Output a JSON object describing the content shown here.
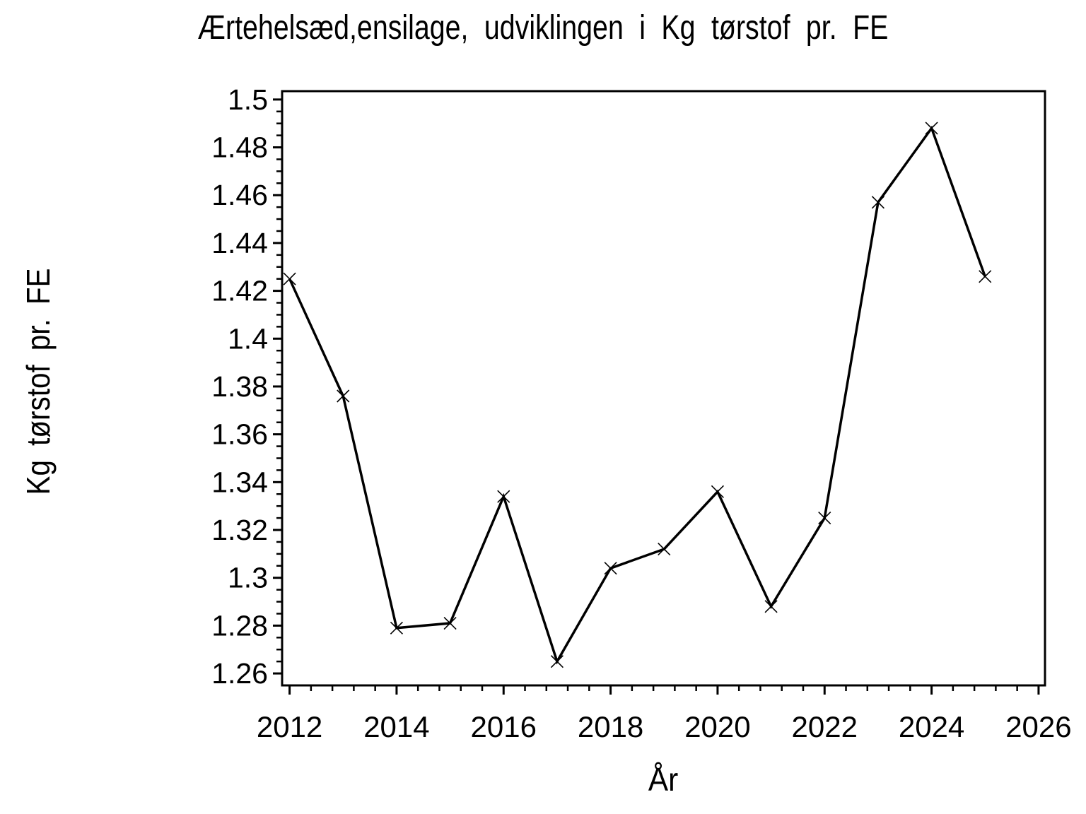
{
  "page": {
    "background": "#ffffff",
    "foreground": "#000000"
  },
  "chart_data": {
    "type": "line",
    "title": "Ærtehelsæd,ensilage, udviklingen i Kg tørstof pr. FE",
    "xlabel": "År",
    "ylabel": "Kg tørstof pr. FE",
    "x": [
      2012,
      2013,
      2014,
      2015,
      2016,
      2017,
      2018,
      2019,
      2020,
      2021,
      2022,
      2023,
      2024,
      2025
    ],
    "values": [
      1.425,
      1.376,
      1.279,
      1.281,
      1.334,
      1.265,
      1.304,
      1.312,
      1.336,
      1.288,
      1.325,
      1.457,
      1.488,
      1.426
    ],
    "series": [
      {
        "name": "Kg tørstof pr. FE",
        "values": [
          1.425,
          1.376,
          1.279,
          1.281,
          1.334,
          1.265,
          1.304,
          1.312,
          1.336,
          1.288,
          1.325,
          1.457,
          1.488,
          1.426
        ]
      }
    ],
    "marker": "x-cross",
    "line_color": "#000000",
    "background": "#ffffff",
    "grid": false,
    "legend": "none",
    "xlim": [
      2011.86,
      2026.12
    ],
    "ylim": [
      1.255,
      1.5035
    ],
    "x_major_ticks": [
      2012,
      2014,
      2016,
      2018,
      2020,
      2022,
      2024,
      2026
    ],
    "x_tick_labels": [
      "2012",
      "2014",
      "2016",
      "2018",
      "2020",
      "2022",
      "2024",
      "2026"
    ],
    "x_minor_step": 0.4,
    "x_minor_per_interval": 4,
    "y_major_ticks": [
      1.26,
      1.28,
      1.3,
      1.32,
      1.34,
      1.36,
      1.38,
      1.4,
      1.42,
      1.44,
      1.46,
      1.48,
      1.5
    ],
    "y_tick_labels": [
      "1.26",
      "1.28",
      "1.3",
      "1.32",
      "1.34",
      "1.36",
      "1.38",
      "1.4",
      "1.42",
      "1.44",
      "1.46",
      "1.48",
      "1.5"
    ],
    "y_minor_step": 0.005,
    "y_minor_per_interval": 3
  }
}
